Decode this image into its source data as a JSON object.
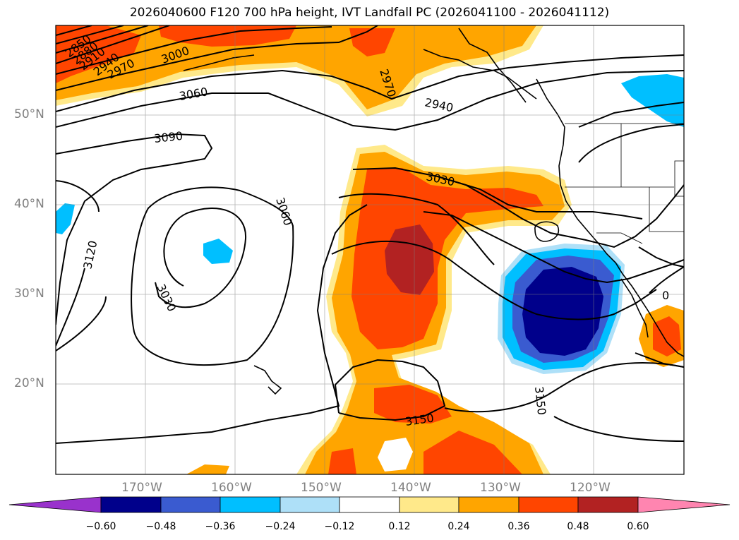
{
  "title": "2026040600 F120 700 hPa height, IVT Landfall PC (2026041100 - 2026041112)",
  "lat_labels": [
    "50°N",
    "40°N",
    "30°N",
    "20°N"
  ],
  "lon_labels": [
    "170°W",
    "160°W",
    "150°W",
    "140°W",
    "130°W",
    "120°W"
  ],
  "colorbar": {
    "ticks": [
      "−0.60",
      "−0.48",
      "−0.36",
      "−0.24",
      "−0.12",
      "0.12",
      "0.24",
      "0.36",
      "0.48",
      "0.60"
    ],
    "colors": [
      "#9932cc",
      "#00008b",
      "#3a5bd0",
      "#00bfff",
      "#aee0f8",
      "#ffffff",
      "#ffe98a",
      "#ffa500",
      "#ff4500",
      "#b22222",
      "#ff85b0"
    ]
  },
  "contour_labels": {
    "c2850": "2850",
    "c2880": "2880",
    "c2910": "2910",
    "c2940a": "2940",
    "c2970a": "2970",
    "c3000": "3000",
    "c3060a": "3060",
    "c3090": "3090",
    "c3060b": "3060",
    "c3120": "3120",
    "c3030a": "3030",
    "c2970b": "2970",
    "c2940b": "2940",
    "c3030b": "3030",
    "c3150a": "3150",
    "c3150b": "3150",
    "c0": "0"
  }
}
